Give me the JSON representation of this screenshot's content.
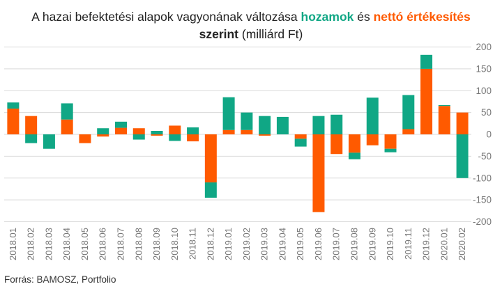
{
  "title": {
    "part1": "A hazai befektetési alapok vagyonának változása ",
    "part2_green": "hozamok",
    "part3": " és ",
    "part4_orange": "nettó értékesítés",
    "line2_bold": "szerint",
    "line2_rest": " (milliárd Ft)"
  },
  "source": "Forrás: BAMOSZ, Portfolio",
  "colors": {
    "hozam": "#10a785",
    "netto": "#ff5a00",
    "grid": "#d9d9d9",
    "tick": "#777777"
  },
  "chart_data": {
    "type": "bar",
    "stacked": true,
    "categories": [
      "2018.01",
      "2018.02",
      "2018.03",
      "2018.04",
      "2018.05",
      "2018.06",
      "2018.07",
      "2018.08",
      "2018.09",
      "2018.10",
      "2018.11",
      "2018.12",
      "2019.01",
      "2019.02",
      "2019.03",
      "2019.04",
      "2019.05",
      "2019.06",
      "2019.07",
      "2019.08",
      "2019.09",
      "2019.10",
      "2019.11",
      "2019.12",
      "2020.01",
      "2020.02"
    ],
    "series": [
      {
        "name": "nettó értékesítés",
        "color": "#ff5a00",
        "values": [
          59,
          42,
          0,
          34,
          -20,
          -5,
          15,
          14,
          -3,
          20,
          -16,
          -110,
          10,
          10,
          -3,
          0,
          -10,
          -178,
          -45,
          -42,
          -25,
          -33,
          12,
          150,
          65,
          50
        ]
      },
      {
        "name": "hozamok",
        "color": "#10a785",
        "values": [
          14,
          -20,
          -33,
          37,
          0,
          14,
          14,
          -12,
          8,
          -15,
          16,
          -35,
          75,
          40,
          42,
          40,
          -18,
          42,
          45,
          -15,
          84,
          -8,
          78,
          32,
          2,
          -100
        ]
      }
    ],
    "ylim": [
      -200,
      200
    ],
    "yticks": [
      200,
      150,
      100,
      50,
      0,
      -50,
      -100,
      -150,
      -200
    ],
    "ytick_labels": [
      "200",
      "150",
      "100",
      "50",
      "0",
      "-50",
      "-100",
      "-150",
      "-200"
    ],
    "grid": true,
    "yaxis_side": "right",
    "xlabel": "",
    "ylabel": ""
  }
}
